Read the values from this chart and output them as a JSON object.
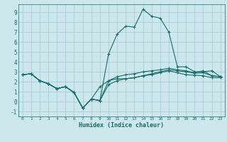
{
  "xlabel": "Humidex (Indice chaleur)",
  "bg_color": "#cce8ec",
  "grid_color": "#aacdd4",
  "line_color": "#1a6b6b",
  "xlim": [
    -0.5,
    23.5
  ],
  "ylim": [
    -1.5,
    9.8
  ],
  "xticks": [
    0,
    1,
    2,
    3,
    4,
    5,
    6,
    7,
    8,
    9,
    10,
    11,
    12,
    13,
    14,
    15,
    16,
    17,
    18,
    19,
    20,
    21,
    22,
    23
  ],
  "yticks": [
    -1,
    0,
    1,
    2,
    3,
    4,
    5,
    6,
    7,
    8,
    9
  ],
  "line_main_x": [
    0,
    1,
    2,
    3,
    4,
    5,
    6,
    7,
    8,
    9,
    10,
    11,
    12,
    13,
    14,
    15,
    16,
    17,
    18,
    19,
    20,
    21,
    22,
    23
  ],
  "line_main_y": [
    2.7,
    2.8,
    2.1,
    1.8,
    1.3,
    1.5,
    0.9,
    -0.65,
    0.25,
    0.1,
    4.8,
    6.8,
    7.6,
    7.5,
    9.3,
    8.6,
    8.4,
    7.0,
    3.5,
    3.5,
    3.0,
    3.0,
    3.1,
    2.5
  ],
  "line2_x": [
    0,
    1,
    2,
    3,
    4,
    5,
    6,
    7,
    8,
    9,
    10,
    11,
    12,
    13,
    14,
    15,
    16,
    17,
    18,
    19,
    20,
    21,
    22,
    23
  ],
  "line2_y": [
    2.7,
    2.8,
    2.1,
    1.8,
    1.3,
    1.5,
    0.9,
    -0.65,
    0.25,
    0.1,
    2.1,
    2.5,
    2.7,
    2.8,
    3.0,
    3.1,
    3.2,
    3.35,
    3.2,
    3.1,
    2.9,
    3.1,
    2.6,
    2.5
  ],
  "line3_x": [
    0,
    1,
    2,
    3,
    4,
    5,
    6,
    7,
    8,
    9,
    10,
    11,
    12,
    13,
    14,
    15,
    16,
    17,
    18,
    19,
    20,
    21,
    22,
    23
  ],
  "line3_y": [
    2.7,
    2.8,
    2.1,
    1.8,
    1.3,
    1.5,
    0.9,
    -0.65,
    0.25,
    0.1,
    1.7,
    2.1,
    2.3,
    2.4,
    2.6,
    2.8,
    3.0,
    3.2,
    3.1,
    3.0,
    2.85,
    2.9,
    2.6,
    2.5
  ],
  "line4_x": [
    0,
    1,
    2,
    3,
    4,
    5,
    6,
    7,
    8,
    9,
    10,
    11,
    12,
    13,
    14,
    15,
    16,
    17,
    18,
    19,
    20,
    21,
    22,
    23
  ],
  "line4_y": [
    2.7,
    2.8,
    2.1,
    1.8,
    1.3,
    1.5,
    0.9,
    -0.65,
    0.25,
    1.5,
    2.1,
    2.3,
    2.3,
    2.4,
    2.6,
    2.7,
    2.9,
    3.1,
    2.9,
    2.7,
    2.65,
    2.6,
    2.4,
    2.4
  ]
}
